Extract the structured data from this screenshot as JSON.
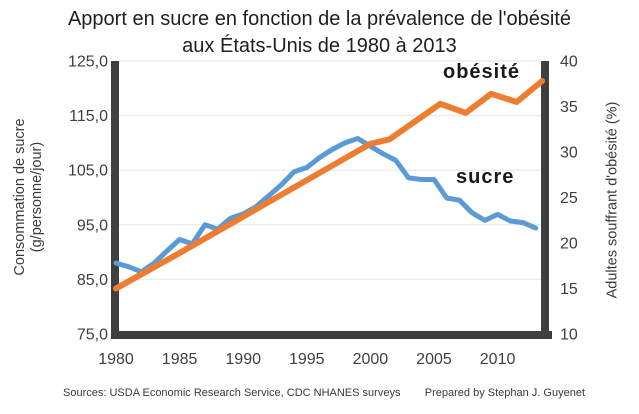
{
  "title": {
    "line1": "Apport en sucre en fonction de la prévalence de l'obésité",
    "line2": "aux États-Unis de 1980 à 2013"
  },
  "footer": {
    "sources": "Sources: USDA Economic Research Service, CDC NHANES surveys",
    "credit": "Prepared by Stephan J. Guyenet"
  },
  "colors": {
    "sucre_line": "#5B9BD5",
    "obesite_line": "#ED7D31",
    "axis_bar": "#3F3F3F",
    "gridline": "#EDEDED",
    "tick_text": "#3f3f3f",
    "title_text": "#1f1f1f"
  },
  "chart_data": {
    "type": "line",
    "title": "Apport en sucre en fonction de la prévalence de l'obésité aux États-Unis de 1980 à 2013",
    "x_axis": {
      "ticks": [
        1980,
        1985,
        1990,
        1995,
        2000,
        2005,
        2010
      ],
      "range": [
        1980,
        2013.65
      ],
      "grid": false
    },
    "y_left": {
      "label": "Consommation de sucre (g/personne/jour)",
      "label_lines": [
        "Consommation de sucre",
        "(g/personne/jour)"
      ],
      "ticks": [
        "125,0",
        "115,0",
        "105,0",
        "95,0",
        "85,0",
        "75,0"
      ],
      "tick_values": [
        125,
        115,
        105,
        95,
        85,
        75
      ],
      "range": [
        75,
        125
      ],
      "grid": true
    },
    "y_right": {
      "label": "Adultes souffrant d'obésité (%)",
      "ticks": [
        "40",
        "35",
        "30",
        "25",
        "20",
        "15",
        "10"
      ],
      "tick_values": [
        40,
        35,
        30,
        25,
        20,
        15,
        10
      ],
      "range": [
        10,
        40
      ],
      "grid": false
    },
    "legend_position": "labels-on-chart",
    "series": [
      {
        "name": "sucre",
        "label": "sucre",
        "axis": "left",
        "color": "#5B9BD5",
        "x": [
          1980,
          1981,
          1982,
          1983,
          1984,
          1985,
          1986,
          1987,
          1988,
          1989,
          1990,
          1991,
          1992,
          1993,
          1994,
          1995,
          1996,
          1997,
          1998,
          1999,
          2000,
          2001,
          2002,
          2003,
          2004,
          2005,
          2006,
          2007,
          2008,
          2009,
          2010,
          2011,
          2012,
          2013
        ],
        "values": [
          88.0,
          87.3,
          86.4,
          88.0,
          90.2,
          92.3,
          91.5,
          95.0,
          94.2,
          96.2,
          97.0,
          98.3,
          100.3,
          102.3,
          104.7,
          105.5,
          107.3,
          108.8,
          110.0,
          110.8,
          109.4,
          108.0,
          106.8,
          103.6,
          103.3,
          103.3,
          99.9,
          99.5,
          97.2,
          95.8,
          96.9,
          95.7,
          95.4,
          94.4
        ]
      },
      {
        "name": "obésité",
        "label": "obésité",
        "axis": "right",
        "color": "#ED7D31",
        "x": [
          1980,
          1985,
          1990,
          1995,
          2000,
          2001.5,
          2005.5,
          2007.5,
          2009.5,
          2011.5,
          2013.5
        ],
        "values": [
          15.0,
          18.9,
          22.9,
          26.9,
          30.9,
          31.4,
          35.3,
          34.3,
          36.4,
          35.5,
          37.8
        ]
      }
    ]
  }
}
